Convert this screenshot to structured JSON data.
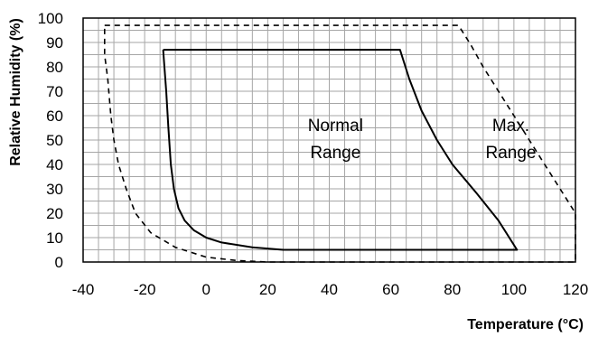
{
  "chart_data": {
    "type": "line",
    "xlabel": "Temperature (°C)",
    "ylabel": "Relative Humidity (%)",
    "xlim": [
      -40,
      120
    ],
    "ylim": [
      0,
      100
    ],
    "x_ticks": [
      "-40",
      "-20",
      "0",
      "20",
      "40",
      "60",
      "80",
      "100",
      "120"
    ],
    "y_ticks": [
      "0",
      "10",
      "20",
      "30",
      "40",
      "50",
      "60",
      "70",
      "80",
      "90",
      "100"
    ],
    "grid": true,
    "annotations": [
      {
        "lines": [
          "Normal",
          "Range"
        ],
        "x": 42,
        "y": 47
      },
      {
        "lines": [
          "Max.",
          "Range"
        ],
        "x": 99,
        "y": 47
      }
    ],
    "series": [
      {
        "style": "solid",
        "points": [
          [
            -14,
            87
          ],
          [
            63,
            87
          ],
          [
            66,
            75
          ],
          [
            70,
            62
          ],
          [
            75,
            50
          ],
          [
            80,
            40
          ],
          [
            88,
            28
          ],
          [
            95,
            17
          ],
          [
            101,
            5
          ],
          [
            25,
            5
          ],
          [
            15,
            6
          ],
          [
            5,
            8
          ],
          [
            0,
            10
          ],
          [
            -4,
            13
          ],
          [
            -7,
            17
          ],
          [
            -9,
            22
          ],
          [
            -10.5,
            30
          ],
          [
            -11.5,
            40
          ],
          [
            -12.3,
            55
          ],
          [
            -13,
            70
          ],
          [
            -14,
            87
          ]
        ]
      },
      {
        "style": "dashed",
        "points": [
          [
            -33,
            97
          ],
          [
            82,
            97
          ],
          [
            86,
            89
          ],
          [
            90,
            80
          ],
          [
            95,
            70
          ],
          [
            100,
            60
          ],
          [
            105,
            50
          ],
          [
            110,
            40
          ],
          [
            115,
            30
          ],
          [
            120,
            20
          ],
          [
            120,
            0
          ],
          [
            20,
            0
          ],
          [
            10,
            0.6
          ],
          [
            0,
            2
          ],
          [
            -10,
            6
          ],
          [
            -18,
            12
          ],
          [
            -23,
            20
          ],
          [
            -26,
            30
          ],
          [
            -28.5,
            40
          ],
          [
            -30,
            50
          ],
          [
            -31,
            60
          ],
          [
            -32,
            75
          ],
          [
            -33,
            85
          ],
          [
            -33,
            97
          ]
        ]
      }
    ]
  }
}
